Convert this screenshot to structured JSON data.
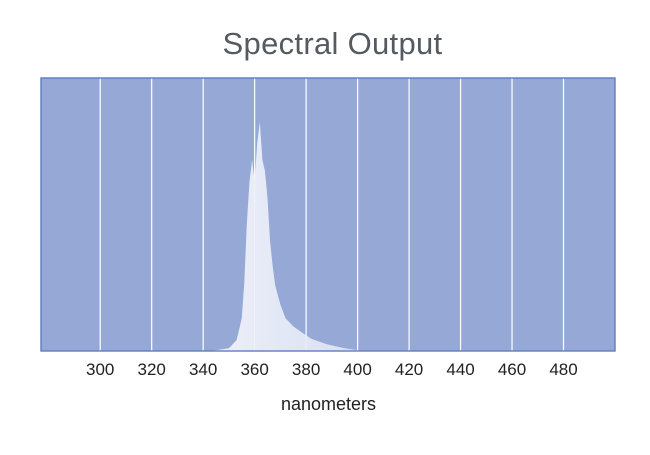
{
  "chart_data": {
    "type": "area",
    "title": "Spectral Output",
    "xlabel": "nanometers",
    "ylabel": "",
    "x_ticks": [
      300,
      320,
      340,
      360,
      380,
      400,
      420,
      440,
      460,
      480
    ],
    "x_tick_labels": [
      "300",
      "320",
      "340",
      "360",
      "380",
      "400",
      "420",
      "440",
      "460",
      "480"
    ],
    "xlim": [
      277,
      500
    ],
    "ylim": [
      0,
      1
    ],
    "y_ticks_shown": false,
    "grid": "vertical",
    "series": [
      {
        "x": [
          343,
          350,
          353,
          355,
          356,
          357,
          358,
          359,
          360,
          361,
          362,
          363,
          364,
          365,
          366,
          367,
          368,
          370,
          372,
          375,
          378,
          382,
          388,
          395,
          400,
          405
        ],
        "y": [
          0.0,
          0.01,
          0.04,
          0.12,
          0.25,
          0.47,
          0.62,
          0.7,
          0.62,
          0.76,
          0.84,
          0.7,
          0.66,
          0.56,
          0.4,
          0.31,
          0.24,
          0.17,
          0.12,
          0.09,
          0.07,
          0.045,
          0.025,
          0.01,
          0.003,
          0.0
        ]
      }
    ],
    "colors": {
      "plot_background": "#96a9d6",
      "plot_border": "#5d7ec0",
      "gridline": "#ffffff",
      "area_fill": "#e7ebf7"
    }
  }
}
